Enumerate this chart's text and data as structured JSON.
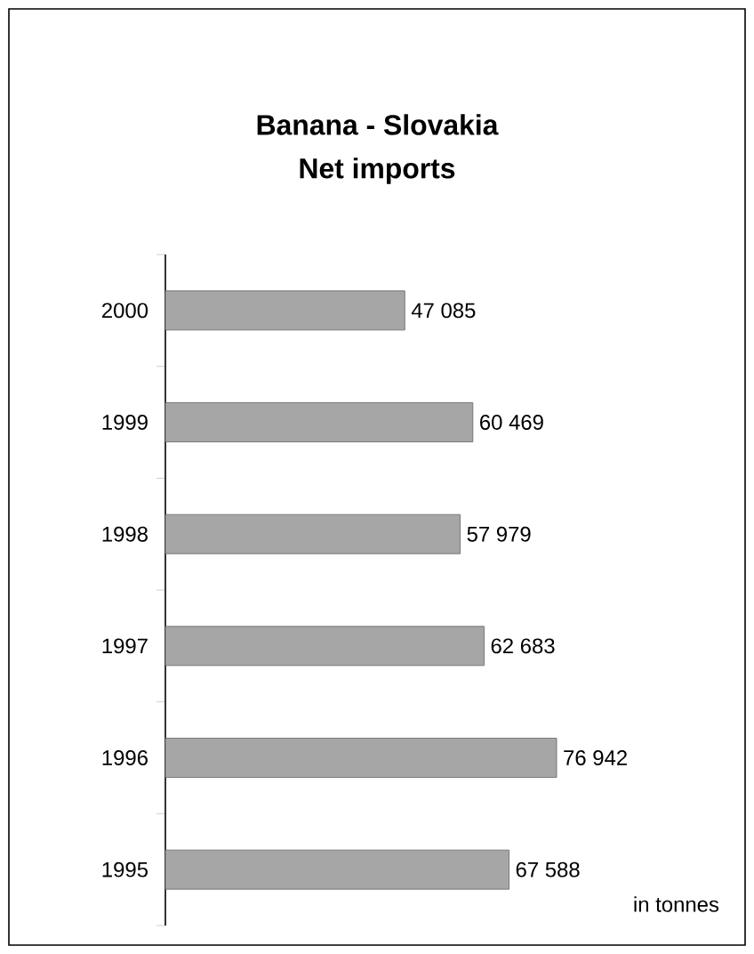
{
  "chart_data": {
    "type": "bar",
    "orientation": "horizontal",
    "title": "Banana - Slovakia",
    "subtitle": "Net imports",
    "categories": [
      "2000",
      "1999",
      "1998",
      "1997",
      "1996",
      "1995"
    ],
    "values": [
      47085,
      60469,
      57979,
      62683,
      76942,
      67588
    ],
    "value_labels": [
      "47 085",
      "60 469",
      "57 979",
      "62 683",
      "76 942",
      "67 588"
    ],
    "color": "#a6a6a6",
    "annotations": [
      "in tonnes"
    ]
  }
}
